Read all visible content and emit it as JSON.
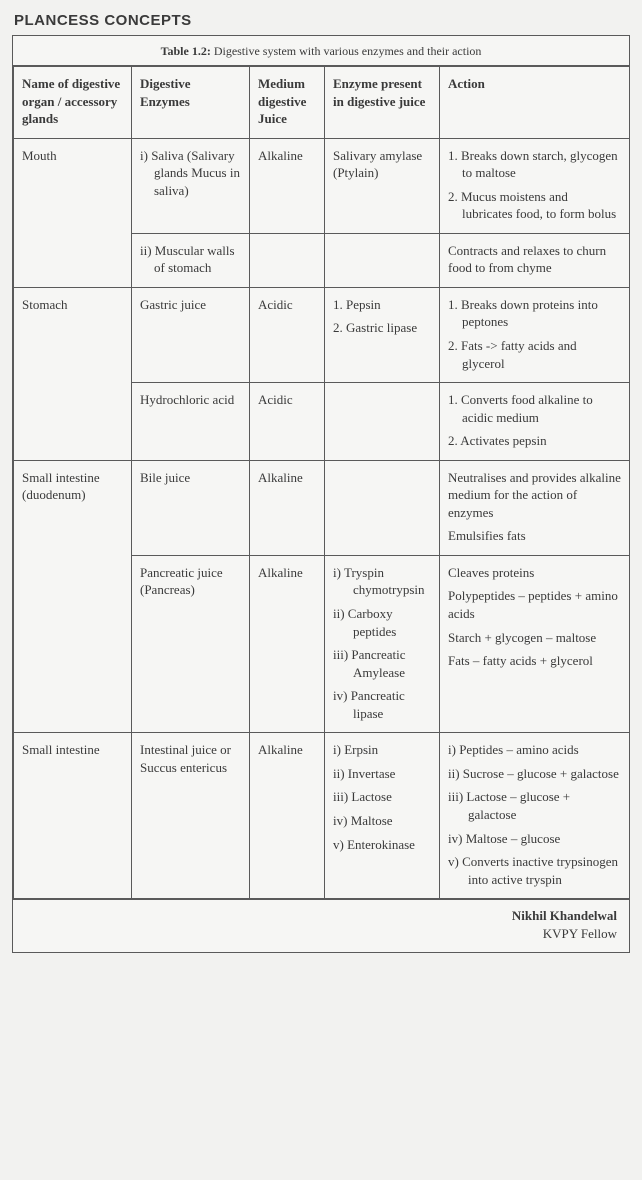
{
  "heading": "PLANCESS CONCEPTS",
  "caption_label": "Table 1.2:",
  "caption_text": " Digestive system with various enzymes and their action",
  "headers": {
    "c1": "Name of digestive organ / accessory glands",
    "c2": "Digestive Enzymes",
    "c3": "Medium digestive Juice",
    "c4": "Enzyme present in digestive juice",
    "c5": "Action"
  },
  "rows": {
    "mouth": {
      "organ": "Mouth",
      "r1": {
        "enzyme": "i) Saliva (Salivary glands Mucus in saliva)",
        "medium": "Alkaline",
        "present": "Salivary amylase (Ptylain)",
        "action1": "1. Breaks down starch, glycogen to maltose",
        "action2": "2. Mucus moistens and lubricates food, to form bolus"
      },
      "r2": {
        "enzyme": "ii) Muscular walls of stomach",
        "medium": "",
        "present": "",
        "action": "Contracts and relaxes to churn food to from chyme"
      }
    },
    "stomach": {
      "organ": "Stomach",
      "r1": {
        "enzyme": "Gastric juice",
        "medium": "Acidic",
        "present1": "1. Pepsin",
        "present2": "2. Gastric lipase",
        "action1": "1. Breaks down proteins into peptones",
        "action2": "2. Fats -> fatty acids and glycerol"
      },
      "r2": {
        "enzyme": "Hydrochloric acid",
        "medium": "Acidic",
        "present": "",
        "action1": "1. Converts food alkaline to acidic medium",
        "action2": "2. Activates pepsin"
      }
    },
    "duodenum": {
      "organ": "Small intestine (duodenum)",
      "r1": {
        "enzyme": "Bile juice",
        "medium": "Alkaline",
        "present": "",
        "action1": "Neutralises and provides alkaline medium for the action of enzymes",
        "action2": "Emulsifies fats"
      },
      "r2": {
        "enzyme": "Pancreatic juice (Pancreas)",
        "medium": "Alkaline",
        "present1": "i) Tryspin chymotrypsin",
        "present2": "ii) Carboxy peptides",
        "present3": "iii) Pancreatic Amylease",
        "present4": "iv) Pancreatic lipase",
        "action1": "Cleaves proteins",
        "action2": "Polypeptides – peptides + amino acids",
        "action3": "Starch + glycogen – maltose",
        "action4": "Fats – fatty acids + glycerol"
      }
    },
    "smallint": {
      "organ": "Small intestine",
      "enzyme": "Intestinal juice or Succus entericus",
      "medium": "Alkaline",
      "present1": "i)  Erpsin",
      "present2": "ii) Invertase",
      "present3": "iii) Lactose",
      "present4": "iv) Maltose",
      "present5": "v) Enterokinase",
      "action1": "i) Peptides – amino acids",
      "action2": "ii) Sucrose – glucose + galactose",
      "action3": "iii) Lactose – glucose + galactose",
      "action4": "iv) Maltose – glucose",
      "action5": "v) Converts inactive trypsinogen into active tryspin"
    }
  },
  "footer": {
    "name": "Nikhil Khandelwal",
    "title": "KVPY Fellow"
  }
}
